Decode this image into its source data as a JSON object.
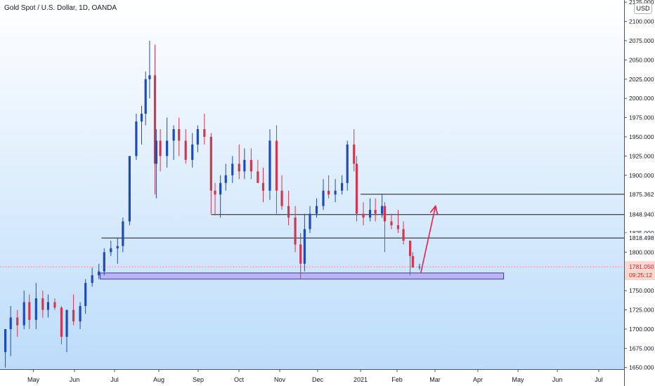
{
  "header": {
    "title": "Gold Spot / U.S. Dollar, 1D, OANDA",
    "currency": "USD"
  },
  "colors": {
    "background_top": "#ffffff",
    "background_bottom": "#bcdcfa",
    "up": "#1e4bb8",
    "down": "#d4364f",
    "support_zone": "#b9a8f7",
    "support_zone_border": "#3d3d8a",
    "arrow": "#e91e4a",
    "line": "#131722",
    "price_badge": "#fbd7d2",
    "price_badge_text": "#c62828"
  },
  "chart_data": {
    "type": "candlestick",
    "title": "Gold Spot / U.S. Dollar, 1D, OANDA",
    "x_tick_labels": [
      "May",
      "Jun",
      "Jul",
      "Aug",
      "Sep",
      "Oct",
      "Nov",
      "Dec",
      "2021",
      "Feb",
      "Mar",
      "Apr",
      "May",
      "Jun",
      "Jul"
    ],
    "y_tick_labels": [
      "1650.000",
      "1675.000",
      "1700.000",
      "1725.000",
      "1750.000",
      "1775.000",
      "1800.000",
      "1825.000",
      "1850.000",
      "1875.000",
      "1900.000",
      "1925.000",
      "1950.000",
      "1975.000",
      "2000.000",
      "2025.000",
      "2050.000",
      "2075.000",
      "2100.000",
      "2125.000"
    ],
    "ylim": [
      1647,
      2127
    ],
    "series": [
      {
        "name": "",
        "x": [
          "2020-04-20",
          "2020-04-24",
          "2020-04-29",
          "2020-05-04",
          "2020-05-08",
          "2020-05-13",
          "2020-05-18",
          "2020-05-22",
          "2020-05-27",
          "2020-06-01",
          "2020-06-05",
          "2020-06-10",
          "2020-06-15",
          "2020-06-19",
          "2020-06-24",
          "2020-06-29",
          "2020-07-03",
          "2020-07-08",
          "2020-07-13",
          "2020-07-17",
          "2020-07-22",
          "2020-07-27",
          "2020-07-31",
          "2020-08-03",
          "2020-08-06",
          "2020-08-10",
          "2020-08-11",
          "2020-08-14",
          "2020-08-19",
          "2020-08-24",
          "2020-08-28",
          "2020-09-02",
          "2020-09-07",
          "2020-09-11",
          "2020-09-16",
          "2020-09-21",
          "2020-09-24",
          "2020-09-28",
          "2020-10-02",
          "2020-10-07",
          "2020-10-12",
          "2020-10-16",
          "2020-10-21",
          "2020-10-26",
          "2020-10-30",
          "2020-11-04",
          "2020-11-09",
          "2020-11-13",
          "2020-11-18",
          "2020-11-23",
          "2020-11-27",
          "2020-11-30",
          "2020-12-04",
          "2020-12-09",
          "2020-12-14",
          "2020-12-18",
          "2020-12-23",
          "2020-12-28",
          "2021-01-01",
          "2021-01-06",
          "2021-01-08",
          "2021-01-13",
          "2021-01-18",
          "2021-01-22",
          "2021-01-27",
          "2021-01-29",
          "2021-02-03",
          "2021-02-08",
          "2021-02-12",
          "2021-02-17",
          "2021-02-19",
          "2021-02-24"
        ],
        "open": [
          1670,
          1700,
          1715,
          1705,
          1735,
          1712,
          1740,
          1725,
          1735,
          1728,
          1690,
          1725,
          1710,
          1730,
          1760,
          1770,
          1775,
          1800,
          1805,
          1808,
          1840,
          1925,
          1970,
          1980,
          2025,
          2030,
          1915,
          1945,
          1925,
          1945,
          1960,
          1945,
          1920,
          1940,
          1960,
          1950,
          1880,
          1875,
          1890,
          1900,
          1915,
          1905,
          1920,
          1905,
          1890,
          1880,
          1945,
          1880,
          1860,
          1845,
          1810,
          1785,
          1830,
          1850,
          1860,
          1880,
          1875,
          1880,
          1890,
          1940,
          1915,
          1850,
          1845,
          1855,
          1850,
          1860,
          1840,
          1835,
          1830,
          1815,
          1795,
          1780
        ],
        "high": [
          1700,
          1730,
          1725,
          1750,
          1745,
          1760,
          1750,
          1745,
          1740,
          1730,
          1725,
          1745,
          1735,
          1765,
          1780,
          1785,
          1805,
          1815,
          1818,
          1845,
          1925,
          1980,
          1990,
          2035,
          2075,
          2070,
          1960,
          1960,
          1975,
          1965,
          1975,
          1960,
          1955,
          1965,
          1980,
          1955,
          1890,
          1900,
          1915,
          1925,
          1940,
          1935,
          1935,
          1920,
          1910,
          1960,
          1965,
          1900,
          1880,
          1860,
          1825,
          1850,
          1860,
          1870,
          1895,
          1900,
          1895,
          1900,
          1945,
          1960,
          1925,
          1865,
          1870,
          1870,
          1875,
          1865,
          1850,
          1855,
          1840,
          1815,
          1800,
          1785
        ],
        "low": [
          1650,
          1665,
          1690,
          1700,
          1700,
          1700,
          1715,
          1715,
          1725,
          1680,
          1670,
          1705,
          1700,
          1720,
          1755,
          1765,
          1770,
          1795,
          1785,
          1800,
          1835,
          1920,
          1940,
          1965,
          2000,
          1875,
          1870,
          1905,
          1910,
          1920,
          1925,
          1915,
          1910,
          1930,
          1940,
          1850,
          1848,
          1845,
          1880,
          1890,
          1895,
          1895,
          1895,
          1890,
          1865,
          1868,
          1850,
          1855,
          1835,
          1800,
          1765,
          1775,
          1825,
          1845,
          1855,
          1870,
          1865,
          1875,
          1880,
          1905,
          1840,
          1835,
          1840,
          1840,
          1845,
          1800,
          1830,
          1825,
          1810,
          1770,
          1780,
          1777
        ],
        "close": [
          1700,
          1715,
          1705,
          1735,
          1712,
          1740,
          1725,
          1735,
          1728,
          1690,
          1725,
          1710,
          1730,
          1760,
          1770,
          1775,
          1800,
          1805,
          1808,
          1840,
          1925,
          1970,
          1980,
          2025,
          2030,
          1915,
          1945,
          1925,
          1945,
          1960,
          1945,
          1920,
          1940,
          1960,
          1950,
          1880,
          1875,
          1890,
          1900,
          1915,
          1905,
          1920,
          1905,
          1890,
          1880,
          1945,
          1880,
          1860,
          1845,
          1810,
          1785,
          1830,
          1850,
          1860,
          1880,
          1875,
          1880,
          1890,
          1940,
          1915,
          1850,
          1845,
          1855,
          1850,
          1860,
          1840,
          1835,
          1830,
          1815,
          1795,
          1780,
          1781
        ]
      }
    ],
    "horizontal_levels": [
      1875.362,
      1848.94,
      1818.498
    ],
    "level_labels": [
      "1875.362",
      "1848.940",
      "1818.498"
    ],
    "level_starts": [
      "2021-01-11",
      "2020-09-21",
      "2020-07-01"
    ],
    "support_zone": {
      "from": "2020-06-30",
      "to": "2021-04-28",
      "low": 1765,
      "high": 1773
    },
    "projection_arrow": {
      "from_date": "2021-02-25",
      "from_price": 1773,
      "to_date": "2021-03-08",
      "to_price": 1860
    },
    "current_price": "1781.050",
    "countdown": "09:25:12"
  }
}
